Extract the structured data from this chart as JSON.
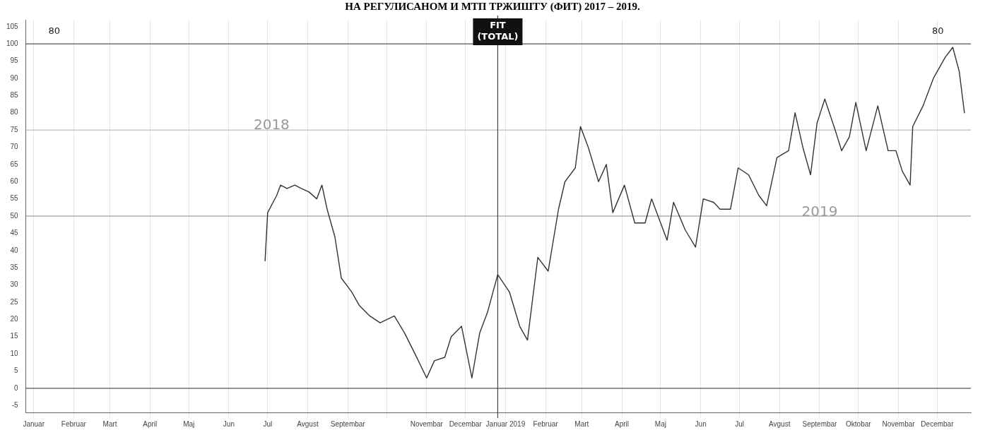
{
  "chart_data": {
    "type": "line",
    "title": "НА РЕГУЛИСАНОМ И МТП ТРЖИШТУ (ФИТ) 2017 – 2019.",
    "x": [
      "2018-06-29",
      "2018-07-01",
      "2018-07-08",
      "2018-07-11",
      "2018-07-16",
      "2018-07-22",
      "2018-07-27",
      "2018-08-02",
      "2018-08-08",
      "2018-08-12",
      "2018-08-16",
      "2018-08-22",
      "2018-08-27",
      "2018-09-04",
      "2018-09-10",
      "2018-09-18",
      "2018-09-26",
      "2018-10-07",
      "2018-10-15",
      "2018-10-23",
      "2018-11-01",
      "2018-11-07",
      "2018-11-15",
      "2018-11-20",
      "2018-11-28",
      "2018-12-06",
      "2018-12-12",
      "2018-12-18",
      "2018-12-26",
      "2019-01-04",
      "2019-01-12",
      "2019-01-18",
      "2019-01-26",
      "2019-02-03",
      "2019-02-11",
      "2019-02-16",
      "2019-02-24",
      "2019-02-28",
      "2019-03-06",
      "2019-03-14",
      "2019-03-20",
      "2019-03-25",
      "2019-04-03",
      "2019-04-11",
      "2019-04-19",
      "2019-04-24",
      "2019-05-06",
      "2019-05-11",
      "2019-05-20",
      "2019-05-28",
      "2019-06-03",
      "2019-06-11",
      "2019-06-16",
      "2019-06-24",
      "2019-06-30",
      "2019-07-08",
      "2019-07-16",
      "2019-07-22",
      "2019-07-30",
      "2019-08-08",
      "2019-08-13",
      "2019-08-19",
      "2019-08-25",
      "2019-08-30",
      "2019-09-05",
      "2019-09-13",
      "2019-09-18",
      "2019-09-24",
      "2019-09-29",
      "2019-10-07",
      "2019-10-16",
      "2019-10-24",
      "2019-10-30",
      "2019-11-04",
      "2019-11-10",
      "2019-11-12",
      "2019-11-20",
      "2019-11-28",
      "2019-12-07",
      "2019-12-13",
      "2019-12-18",
      "2019-12-22"
    ],
    "series": [
      {
        "color": "#333333",
        "values": [
          37,
          51,
          56,
          59,
          58,
          59,
          58,
          57,
          55,
          59,
          52,
          44,
          32,
          28,
          24,
          21,
          19,
          21,
          16,
          10,
          3,
          8,
          9,
          15,
          18,
          3,
          16,
          22,
          33,
          28,
          18,
          14,
          38,
          34,
          52,
          60,
          64,
          76,
          70,
          60,
          65,
          51,
          59,
          48,
          48,
          55,
          43,
          54,
          46,
          41,
          55,
          54,
          52,
          52,
          64,
          62,
          56,
          53,
          67,
          69,
          80,
          70,
          62,
          77,
          84,
          75,
          69,
          73,
          83,
          69,
          82,
          69,
          69,
          63,
          59,
          76,
          82,
          90,
          96,
          99,
          92,
          80
        ]
      }
    ],
    "xlim": [
      "2017-12-26",
      "2019-12-27"
    ],
    "xticks": [
      {
        "value": "2018-01-01",
        "label": "Januar"
      },
      {
        "value": "2018-02-01",
        "label": "Februar"
      },
      {
        "value": "2018-03-01",
        "label": "Mart"
      },
      {
        "value": "2018-04-01",
        "label": "April"
      },
      {
        "value": "2018-05-01",
        "label": "Maj"
      },
      {
        "value": "2018-06-01",
        "label": "Jun"
      },
      {
        "value": "2018-07-01",
        "label": "Jul"
      },
      {
        "value": "2018-08-01",
        "label": "Avgust"
      },
      {
        "value": "2018-09-01",
        "label": "Septembar"
      },
      {
        "value": "2018-10-01",
        "label": null
      },
      {
        "value": "2018-11-01",
        "label": "Novembar"
      },
      {
        "value": "2018-12-01",
        "label": "Decembar"
      },
      {
        "value": "2019-01-01",
        "label": "Januar 2019"
      },
      {
        "value": "2019-02-01",
        "label": "Februar"
      },
      {
        "value": "2019-03-01",
        "label": "Mart"
      },
      {
        "value": "2019-04-01",
        "label": "April"
      },
      {
        "value": "2019-05-01",
        "label": "Maj"
      },
      {
        "value": "2019-06-01",
        "label": "Jun"
      },
      {
        "value": "2019-07-01",
        "label": "Jul"
      },
      {
        "value": "2019-08-01",
        "label": "Avgust"
      },
      {
        "value": "2019-09-01",
        "label": "Septembar"
      },
      {
        "value": "2019-10-01",
        "label": "Oktobar"
      },
      {
        "value": "2019-11-01",
        "label": "Novembar"
      },
      {
        "value": "2019-12-01",
        "label": "Decembar"
      }
    ],
    "ylim": [
      -7,
      107
    ],
    "yticks": [
      -5,
      0,
      5,
      10,
      15,
      20,
      25,
      30,
      35,
      40,
      45,
      50,
      55,
      60,
      65,
      70,
      75,
      80,
      85,
      90,
      95,
      100,
      105
    ],
    "grid": "x",
    "marker": "none",
    "line_style": "solid",
    "ref_lines": [
      {
        "axis": "y",
        "value": 0,
        "color": "#555555"
      },
      {
        "axis": "y",
        "value": 50,
        "color": "#888888"
      },
      {
        "axis": "y",
        "value": 75,
        "color": "#bbbbbb"
      },
      {
        "axis": "y",
        "value": 100,
        "color": "#555555"
      },
      {
        "axis": "x",
        "value": "2018-12-26",
        "color": "#444444",
        "label": "FIT (TOTAL)"
      }
    ],
    "annotations": [
      "80",
      "2018",
      "2019",
      "80"
    ]
  }
}
